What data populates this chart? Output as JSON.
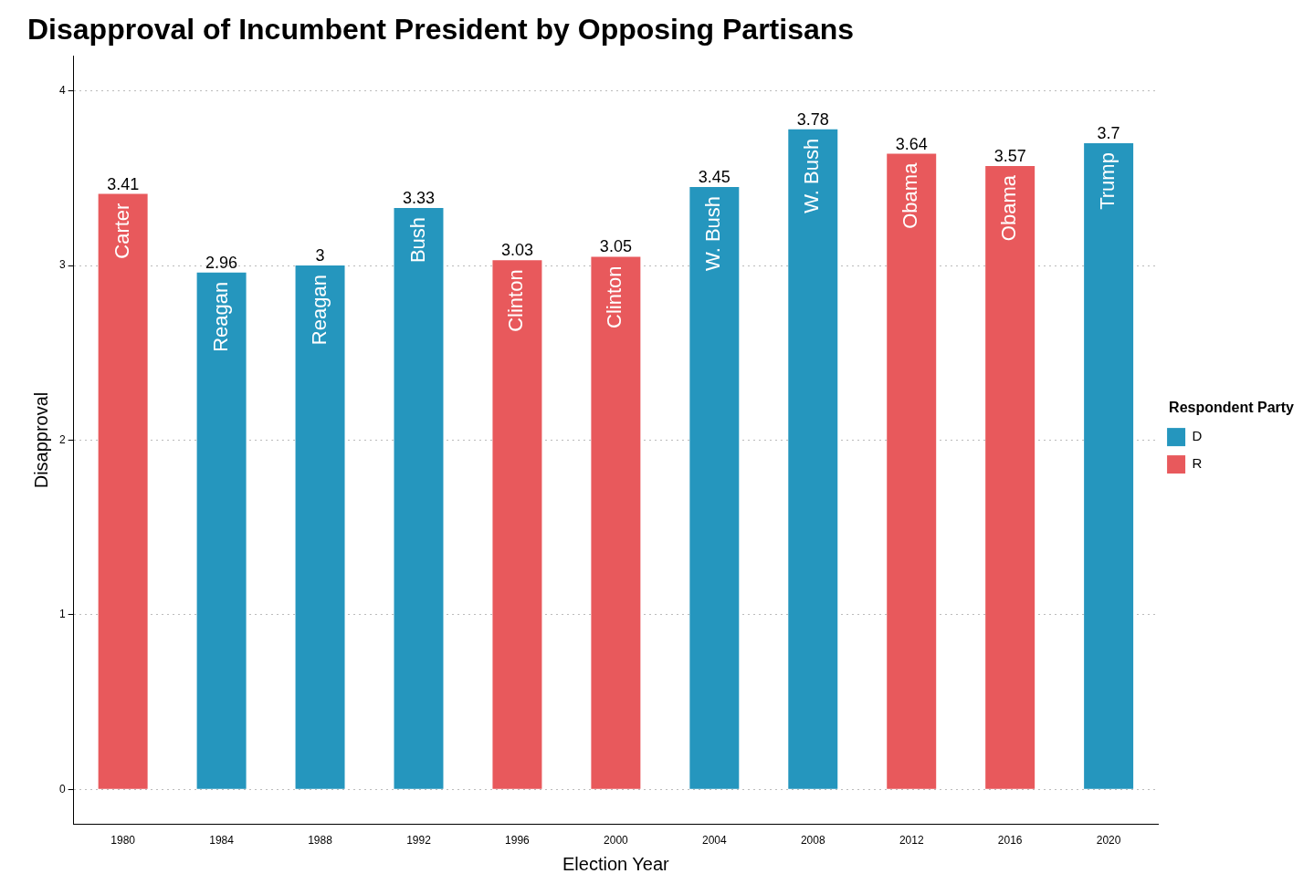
{
  "chart_data": {
    "type": "bar",
    "title": "Disapproval of Incumbent President by Opposing Partisans",
    "xlabel": "Election Year",
    "ylabel": "Disapproval",
    "legend_title": "Respondent Party",
    "legend": "right",
    "grid": "y",
    "data_labels": true,
    "categories": [
      "1980",
      "1984",
      "1988",
      "1992",
      "1996",
      "2000",
      "2004",
      "2008",
      "2012",
      "2016",
      "2020"
    ],
    "series": [
      {
        "name": "D",
        "color": "#2596be",
        "values": [
          null,
          2.96,
          3,
          3.33,
          null,
          null,
          3.45,
          3.78,
          null,
          null,
          3.7
        ]
      },
      {
        "name": "R",
        "color": "#e8595c",
        "values": [
          3.41,
          null,
          null,
          null,
          3.03,
          3.05,
          null,
          null,
          3.64,
          3.57,
          null
        ]
      }
    ],
    "ylim": [
      -0.2,
      4.2
    ],
    "yticks": [
      0,
      1,
      2,
      3,
      4
    ],
    "annotations": [
      {
        "text": "Carter",
        "x": "1980",
        "y": 3.41
      },
      {
        "text": "Reagan",
        "x": "1984",
        "y": 2.96
      },
      {
        "text": "Reagan",
        "x": "1988",
        "y": 3
      },
      {
        "text": "Bush",
        "x": "1992",
        "y": 3.33
      },
      {
        "text": "Clinton",
        "x": "1996",
        "y": 3.03
      },
      {
        "text": "Clinton",
        "x": "2000",
        "y": 3.05
      },
      {
        "text": "W. Bush",
        "x": "2004",
        "y": 3.45
      },
      {
        "text": "W. Bush",
        "x": "2008",
        "y": 3.78
      },
      {
        "text": "Obama",
        "x": "2012",
        "y": 3.64
      },
      {
        "text": "Obama",
        "x": "2016",
        "y": 3.57
      },
      {
        "text": "Trump",
        "x": "2020",
        "y": 3.7
      }
    ]
  }
}
